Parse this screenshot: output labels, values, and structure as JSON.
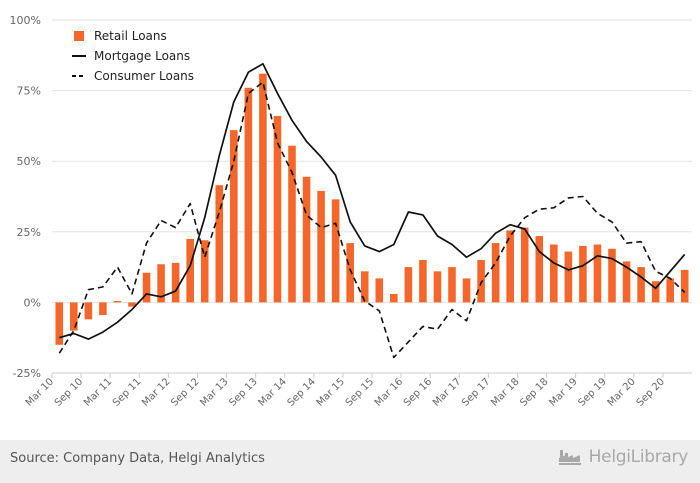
{
  "chart_data": {
    "type": "bar",
    "title": "",
    "xlabel": "",
    "ylabel": "",
    "ylim": [
      -25,
      100
    ],
    "yticks": [
      "-25%",
      "0%",
      "25%",
      "50%",
      "75%",
      "100%"
    ],
    "ytick_values": [
      -25,
      0,
      25,
      50,
      75,
      100
    ],
    "grid": "horizontal",
    "legend_position": "top-left",
    "categories": [
      "Mar 10",
      "Jun 10",
      "Sep 10",
      "Dec 10",
      "Mar 11",
      "Jun 11",
      "Sep 11",
      "Dec 11",
      "Mar 12",
      "Jun 12",
      "Sep 12",
      "Dec 12",
      "Mar 13",
      "Jun 13",
      "Sep 13",
      "Dec 13",
      "Mar 14",
      "Jun 14",
      "Sep 14",
      "Dec 14",
      "Mar 15",
      "Jun 15",
      "Sep 15",
      "Dec 15",
      "Mar 16",
      "Jun 16",
      "Sep 16",
      "Dec 16",
      "Mar 17",
      "Jun 17",
      "Sep 17",
      "Dec 17",
      "Mar 18",
      "Jun 18",
      "Sep 18",
      "Dec 18",
      "Mar 19",
      "Jun 19",
      "Sep 19",
      "Dec 19",
      "Mar 20",
      "Jun 20",
      "Sep 20",
      "Dec 20"
    ],
    "xtick_labels": [
      "Mar 10",
      "Sep 10",
      "Mar 11",
      "Sep 11",
      "Mar 12",
      "Sep 12",
      "Mar 13",
      "Sep 13",
      "Mar 14",
      "Sep 14",
      "Mar 15",
      "Sep 15",
      "Mar 16",
      "Sep 16",
      "Mar 17",
      "Sep 17",
      "Mar 18",
      "Sep 18",
      "Mar 19",
      "Sep 19",
      "Mar 20",
      "Sep 20"
    ],
    "series": [
      {
        "name": "Retail Loans",
        "kind": "bar",
        "color": "#f4662a",
        "values": [
          -15,
          -10,
          -6,
          -4.5,
          0.5,
          -1.5,
          10.5,
          13.5,
          14,
          22.5,
          22,
          41.5,
          61,
          76,
          81,
          66,
          55.5,
          44.5,
          39.5,
          36.5,
          21,
          11,
          8.5,
          3,
          12.5,
          15,
          11,
          12.5,
          8.5,
          15,
          21,
          25.5,
          26.5,
          23.5,
          20.5,
          18,
          20,
          20.5,
          19,
          14.5,
          12.5,
          7.5,
          8.5,
          11.5
        ]
      },
      {
        "name": "Mortgage Loans",
        "kind": "line",
        "color": "#111111",
        "dash": "solid",
        "values": [
          -12.5,
          -11,
          -13,
          -10.5,
          -7,
          -2.5,
          3,
          2,
          4,
          13,
          30,
          52,
          71,
          81.5,
          84.5,
          74,
          64.5,
          57,
          51.5,
          45,
          28.5,
          20,
          18,
          20.5,
          32,
          31,
          23.5,
          20.5,
          16,
          19,
          24.5,
          27.5,
          26,
          18,
          14,
          11.5,
          13,
          16.5,
          15.5,
          12.5,
          9,
          5,
          11,
          17
        ]
      },
      {
        "name": "Consumer Loans",
        "kind": "line",
        "color": "#111111",
        "dash": "dashed",
        "values": [
          -18,
          -10,
          4.5,
          5.5,
          12.5,
          3,
          21,
          29,
          26.5,
          35,
          16,
          32,
          50,
          74,
          78,
          56.5,
          46,
          31,
          26.5,
          28,
          11.5,
          0.5,
          -3,
          -19.5,
          -14,
          -8.5,
          -9.5,
          -2.5,
          -6.5,
          7,
          14,
          23.5,
          30,
          33,
          33.5,
          37,
          37.5,
          31.5,
          28.5,
          21,
          21.5,
          11,
          8.5,
          3.5
        ]
      }
    ]
  },
  "footer": {
    "source": "Source: Company Data, Helgi Analytics",
    "brand": "HelgiLibrary",
    "brand_icon": "factory-icon"
  }
}
